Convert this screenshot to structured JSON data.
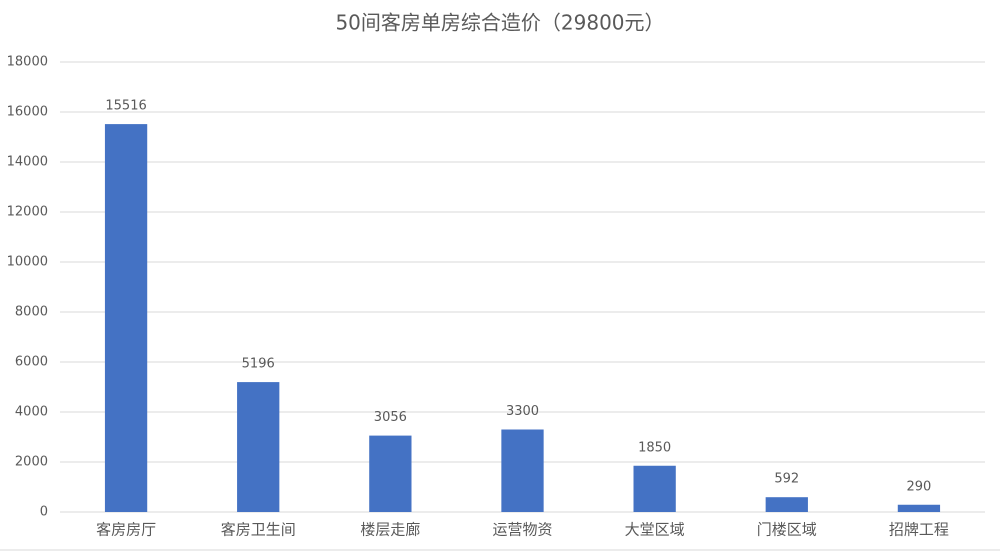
{
  "chart_data": {
    "type": "bar",
    "title": "50间客房单房综合造价（29800元）",
    "categories": [
      "客房房厅",
      "客房卫生间",
      "楼层走廊",
      "运营物资",
      "大堂区域",
      "门楼区域",
      "招牌工程"
    ],
    "values": [
      15516,
      5196,
      3056,
      3300,
      1850,
      592,
      290
    ],
    "color": "#4472c4",
    "ylim": [
      0,
      18000
    ],
    "yticks": [
      0,
      2000,
      4000,
      6000,
      8000,
      10000,
      12000,
      14000,
      16000,
      18000
    ],
    "grid": true
  }
}
